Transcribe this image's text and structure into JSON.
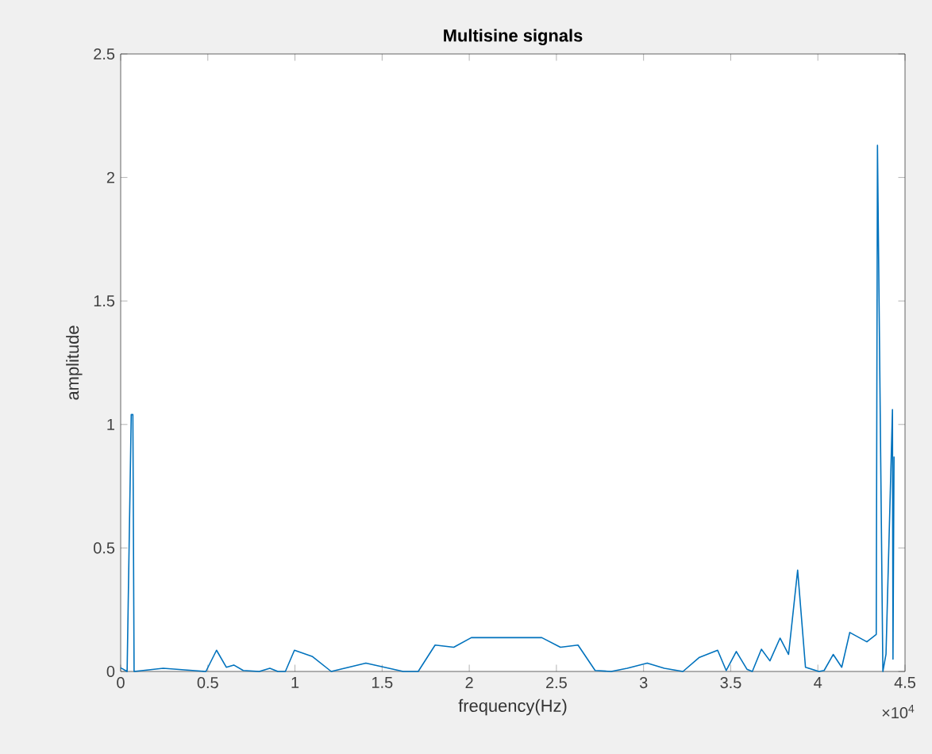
{
  "chart_data": {
    "type": "line",
    "title": "Multisine signals",
    "xlabel": "frequency(Hz)",
    "ylabel": "amplitude",
    "annotations": [
      "×10$^{4}$"
    ],
    "series": [
      {
        "color": "#0072bd",
        "x": [
          0,
          0.037,
          0.0606,
          0.07,
          0.077,
          0.244,
          0.489,
          0.55,
          0.606,
          0.649,
          0.703,
          0.795,
          0.856,
          0.902,
          0.945,
          0.997,
          1.101,
          1.208,
          1.407,
          1.514,
          1.621,
          1.707,
          1.804,
          1.911,
          2.012,
          2.416,
          2.523,
          2.624,
          2.722,
          2.814,
          2.906,
          3.021,
          3.119,
          3.226,
          3.318,
          3.425,
          3.474,
          3.532,
          3.593,
          3.624,
          3.676,
          3.725,
          3.783,
          3.832,
          3.884,
          3.929,
          4.006,
          4.036,
          4.088,
          4.137,
          4.183,
          4.281,
          4.335,
          4.342,
          4.373,
          4.391,
          4.428,
          4.431,
          4.437
        ],
        "values": [
          0.015,
          0,
          1.04,
          1.04,
          0,
          0.013,
          0,
          0.086,
          0.017,
          0.026,
          0.004,
          0,
          0.013,
          0,
          0,
          0.086,
          0.06,
          0,
          0.034,
          0.017,
          0,
          0,
          0.107,
          0.098,
          0.137,
          0.137,
          0.098,
          0.107,
          0.004,
          0,
          0.013,
          0.034,
          0.013,
          0,
          0.056,
          0.086,
          0.004,
          0.081,
          0.009,
          0,
          0.09,
          0.043,
          0.135,
          0.069,
          0.41,
          0.017,
          0,
          0.004,
          0.069,
          0.017,
          0.158,
          0.12,
          0.15,
          2.13,
          0,
          0.07,
          1.06,
          0.05,
          0.87
        ]
      }
    ],
    "xlim": [
      0,
      4.5
    ],
    "ylim": [
      0,
      2.5
    ],
    "xticks": [
      0,
      0.5,
      1,
      1.5,
      2,
      2.5,
      3,
      3.5,
      4,
      4.5
    ],
    "yticks": [
      0,
      0.5,
      1,
      1.5,
      2,
      2.5
    ],
    "grid": false
  }
}
